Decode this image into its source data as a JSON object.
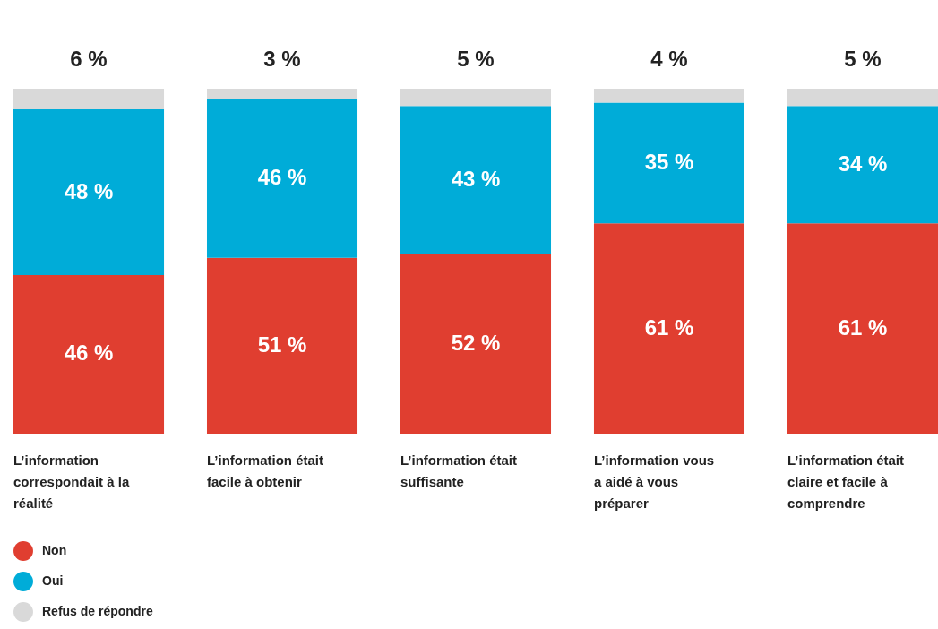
{
  "chart_data": {
    "type": "bar",
    "stacked": true,
    "legend": "bottom left",
    "categories": [
      "L’information correspondait à la réalité",
      "L’information était facile à obtenir",
      "L’information était suffisante",
      "L’information vous a aidé à vous préparer",
      "L’information était claire et facile à comprendre"
    ],
    "series": [
      {
        "name": "Non",
        "color": "#e03e30",
        "values": [
          46,
          51,
          52,
          61,
          61
        ],
        "value_labels": [
          "46 %",
          "51 %",
          "52 %",
          "61 %",
          "61 %"
        ]
      },
      {
        "name": "Oui",
        "color": "#00acd8",
        "values": [
          48,
          46,
          43,
          35,
          34
        ],
        "value_labels": [
          "48 %",
          "46 %",
          "43 %",
          "35 %",
          "34 %"
        ]
      },
      {
        "name": "Refus de répondre",
        "color": "#d9d9d9",
        "values": [
          6,
          3,
          5,
          4,
          5
        ],
        "value_labels": [
          "6 %",
          "3 %",
          "5 %",
          "4 %",
          "5 %"
        ]
      }
    ]
  }
}
